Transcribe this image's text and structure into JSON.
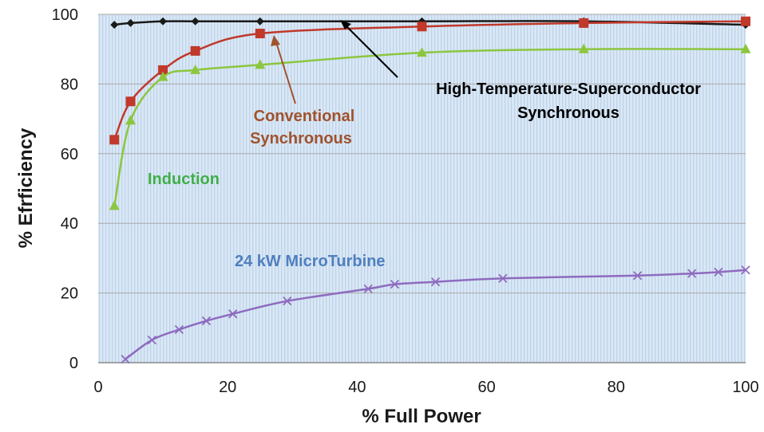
{
  "chart_data": {
    "type": "line",
    "title": "",
    "xlabel": "% Full Power",
    "ylabel": "% Efrficiency",
    "xlim": [
      0,
      100
    ],
    "ylim": [
      0,
      100
    ],
    "x_ticks": [
      0,
      20,
      40,
      60,
      80,
      100
    ],
    "y_ticks": [
      0,
      20,
      40,
      60,
      80,
      100
    ],
    "grid": "horizontal",
    "legend": "none (inline annotations)",
    "colors": {
      "hts": "#1a1a1a",
      "conventional": "#c0392b",
      "induction": "#8cc63f",
      "microturbine": "#8e6bbf",
      "grid": "#a9a9a9",
      "plot_background": "#dbe8f5"
    },
    "series": [
      {
        "name": "High-Temperature-Superconductor Synchronous",
        "marker": "diamond",
        "x": [
          2.5,
          5,
          10,
          15,
          25,
          50,
          75,
          100
        ],
        "y": [
          97,
          97.5,
          98,
          98,
          98,
          98,
          98,
          97
        ]
      },
      {
        "name": "Conventional Synchronous",
        "marker": "square",
        "x": [
          2.5,
          5,
          10,
          15,
          25,
          50,
          75,
          100
        ],
        "y": [
          64,
          75,
          84,
          89.5,
          94.5,
          96.5,
          97.5,
          98
        ]
      },
      {
        "name": "Induction",
        "marker": "triangle",
        "x": [
          2.5,
          5,
          10,
          15,
          25,
          50,
          75,
          100
        ],
        "y": [
          45,
          69.5,
          82,
          84,
          85.5,
          89,
          90,
          90
        ]
      },
      {
        "name": "24 kW MicroTurbine",
        "marker": "x",
        "x": [
          4.2,
          8.3,
          12.5,
          16.7,
          20.8,
          29.2,
          41.7,
          45.8,
          52.1,
          62.5,
          83.3,
          91.7,
          95.8,
          100
        ],
        "y": [
          1,
          6.5,
          9.5,
          12,
          14,
          17.7,
          21.2,
          22.5,
          23.2,
          24.2,
          25,
          25.6,
          26,
          26.6
        ]
      }
    ],
    "annotations": {
      "hts_line1": "High-Temperature-Superconductor",
      "hts_line2": "Synchronous",
      "conv_line1": "Conventional",
      "conv_line2": "Synchronous",
      "induction": "Induction",
      "microturbine": "24 kW MicroTurbine"
    }
  }
}
